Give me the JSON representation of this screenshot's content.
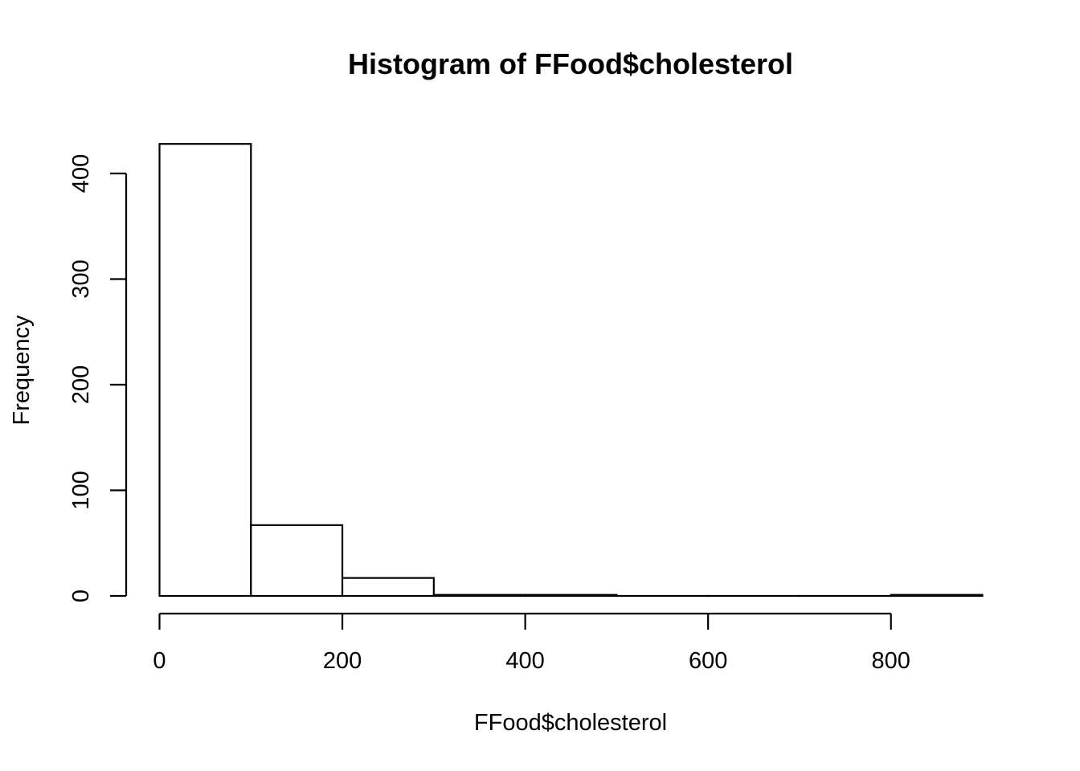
{
  "chart_data": {
    "type": "bar",
    "title": "Histogram of FFood$cholesterol",
    "xlabel": "FFood$cholesterol",
    "ylabel": "Frequency",
    "bins": [
      {
        "start": 0,
        "end": 100,
        "count": 428
      },
      {
        "start": 100,
        "end": 200,
        "count": 67
      },
      {
        "start": 200,
        "end": 300,
        "count": 17
      },
      {
        "start": 300,
        "end": 400,
        "count": 1
      },
      {
        "start": 400,
        "end": 500,
        "count": 1
      },
      {
        "start": 500,
        "end": 600,
        "count": 0
      },
      {
        "start": 600,
        "end": 700,
        "count": 0
      },
      {
        "start": 700,
        "end": 800,
        "count": 0
      },
      {
        "start": 800,
        "end": 900,
        "count": 1
      }
    ],
    "xlim": [
      0,
      900
    ],
    "ylim": [
      0,
      428
    ],
    "x_ticks": [
      0,
      200,
      400,
      600,
      800
    ],
    "y_ticks": [
      0,
      100,
      200,
      300,
      400
    ],
    "grid": false,
    "legend": "none"
  }
}
